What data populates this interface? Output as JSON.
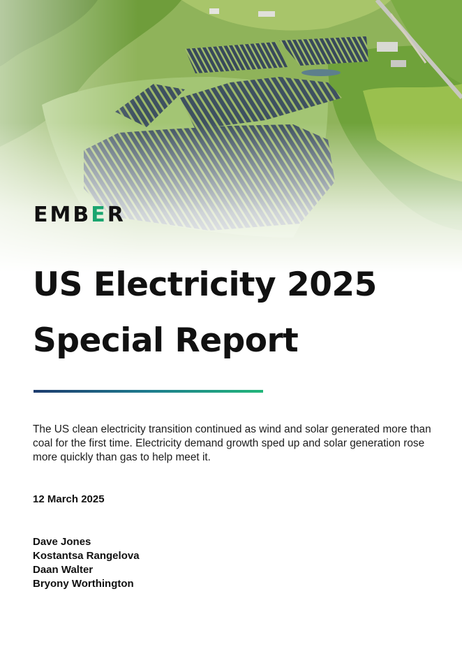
{
  "brand": {
    "logo_parts": [
      "EMB",
      "E",
      "R"
    ],
    "accent_color": "#1aa56f",
    "text_color": "#111111"
  },
  "hero": {
    "image": "aerial-solar-farm"
  },
  "report": {
    "title_lines": [
      "US Electricity 2025",
      "Special Report"
    ],
    "summary": "The US clean electricity transition continued as wind and solar generated more than coal for the first time. Electricity demand growth sped up and solar generation rose more quickly than gas to help meet it.",
    "date": "12 March 2025",
    "authors": [
      "Dave Jones",
      "Kostantsa Rangelova",
      "Daan Walter",
      "Bryony Worthington"
    ]
  },
  "divider_gradient": [
    "#1d3b6e",
    "#1e7c8e",
    "#22b67a"
  ]
}
